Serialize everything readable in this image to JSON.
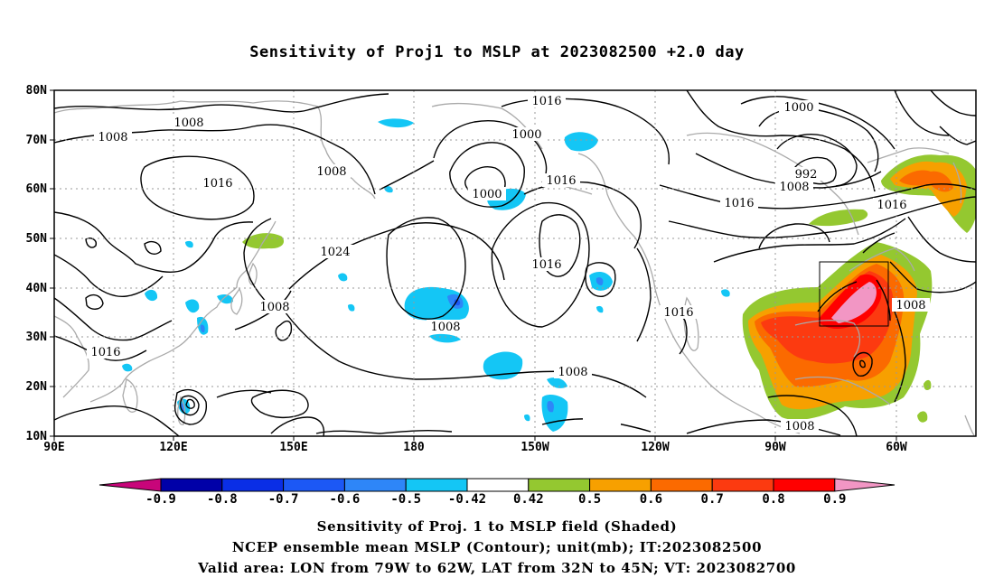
{
  "title": "Sensitivity of Proj1 to MSLP at 2023082500 +2.0 day",
  "axes": {
    "lat_labels": [
      "80N",
      "70N",
      "60N",
      "50N",
      "40N",
      "30N",
      "20N",
      "10N"
    ],
    "lon_labels": [
      "90E",
      "120E",
      "150E",
      "180",
      "150W",
      "120W",
      "90W",
      "60W"
    ]
  },
  "contour_labels": [
    "1016",
    "1008",
    "1008",
    "1016",
    "1008",
    "1000",
    "1016",
    "1000",
    "992",
    "1000",
    "1008",
    "1016",
    "1016",
    "1024",
    "1016",
    "1008",
    "1008",
    "1016",
    "1008",
    "1016",
    "1008",
    "1008"
  ],
  "colorbar": {
    "colors": [
      "#c8057a",
      "#0000a8",
      "#0a2ee6",
      "#1c58f5",
      "#2e86f8",
      "#14c6f5",
      "#ffffff",
      "#94c830",
      "#f7a000",
      "#fb6a00",
      "#fc3a10",
      "#ff0000",
      "#f296c4"
    ],
    "labels": [
      "-0.9",
      "-0.8",
      "-0.7",
      "-0.6",
      "-0.5",
      "-0.42",
      "0.42",
      "0.5",
      "0.6",
      "0.7",
      "0.8",
      "0.9"
    ]
  },
  "footer": {
    "line1": "Sensitivity of Proj. 1 to MSLP field (Shaded)",
    "line2": "NCEP ensemble mean MSLP (Contour); unit(mb); IT:2023082500",
    "line3": "Valid area: LON from 79W to 62W, LAT from 32N to 45N; VT: 2023082700"
  }
}
